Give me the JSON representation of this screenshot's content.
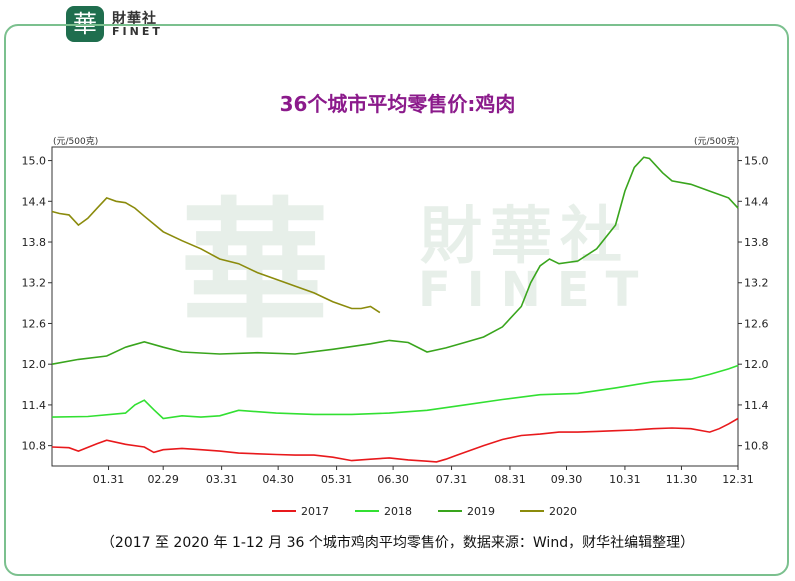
{
  "brand": {
    "logo_char": "華",
    "name_cn": "財華社",
    "name_en": "FINET"
  },
  "watermark": {
    "logo_char": "華",
    "name_cn": "財華社",
    "name_en": "FINET"
  },
  "caption": "（2017 至 2020 年 1-12 月 36 个城市鸡肉平均零售价，数据来源：Wind，财华社编辑整理）",
  "colors": {
    "frame": "#7bc08e",
    "title": "#8b1a8b",
    "logo": "#1f6e4e"
  },
  "chart_data": {
    "type": "line",
    "title": "36个城市平均零售价:鸡肉",
    "ylabel_left": "(元/500克)",
    "ylabel_right": "(元/500克)",
    "ylim": [
      10.5,
      15.2
    ],
    "yticks": [
      10.8,
      11.4,
      12.0,
      12.6,
      13.2,
      13.8,
      14.4,
      15.0
    ],
    "ytick_labels": [
      "10.8",
      "11.4",
      "12.0",
      "12.6",
      "13.2",
      "13.8",
      "14.4",
      "15.0"
    ],
    "xlim": [
      1,
      365
    ],
    "xticks": [
      31,
      60,
      91,
      121,
      152,
      182,
      213,
      244,
      274,
      305,
      335,
      365
    ],
    "xtick_labels": [
      "01.31",
      "02.29",
      "03.31",
      "04.30",
      "05.31",
      "06.30",
      "07.31",
      "08.31",
      "09.30",
      "10.31",
      "11.30",
      "12.31"
    ],
    "legend_position": "bottom",
    "series": [
      {
        "name": "2017",
        "color": "#e8191c",
        "x": [
          1,
          10,
          15,
          25,
          30,
          40,
          50,
          55,
          60,
          70,
          80,
          90,
          100,
          110,
          120,
          130,
          140,
          150,
          160,
          170,
          180,
          190,
          200,
          205,
          210,
          215,
          220,
          230,
          240,
          250,
          260,
          270,
          280,
          290,
          300,
          310,
          320,
          330,
          340,
          350,
          355,
          360,
          365
        ],
        "y": [
          10.78,
          10.77,
          10.72,
          10.83,
          10.88,
          10.82,
          10.78,
          10.7,
          10.74,
          10.76,
          10.74,
          10.72,
          10.69,
          10.68,
          10.67,
          10.66,
          10.66,
          10.63,
          10.58,
          10.6,
          10.62,
          10.59,
          10.57,
          10.56,
          10.6,
          10.65,
          10.7,
          10.8,
          10.89,
          10.95,
          10.97,
          11.0,
          11.0,
          11.01,
          11.02,
          11.03,
          11.05,
          11.06,
          11.05,
          11.0,
          11.05,
          11.12,
          11.2
        ]
      },
      {
        "name": "2018",
        "color": "#32e032",
        "x": [
          1,
          20,
          40,
          45,
          50,
          55,
          60,
          70,
          80,
          90,
          100,
          110,
          120,
          140,
          160,
          180,
          200,
          220,
          240,
          260,
          280,
          300,
          320,
          340,
          350,
          360,
          365
        ],
        "y": [
          11.22,
          11.23,
          11.28,
          11.4,
          11.47,
          11.33,
          11.2,
          11.24,
          11.22,
          11.24,
          11.32,
          11.3,
          11.28,
          11.26,
          11.26,
          11.28,
          11.32,
          11.4,
          11.48,
          11.55,
          11.57,
          11.65,
          11.74,
          11.78,
          11.85,
          11.93,
          11.98
        ]
      },
      {
        "name": "2019",
        "color": "#39a51d",
        "x": [
          1,
          15,
          30,
          40,
          50,
          60,
          70,
          90,
          110,
          130,
          150,
          170,
          180,
          190,
          200,
          210,
          220,
          230,
          240,
          250,
          255,
          260,
          265,
          270,
          280,
          290,
          300,
          305,
          310,
          315,
          318,
          325,
          330,
          340,
          350,
          360,
          365
        ],
        "y": [
          12.0,
          12.07,
          12.12,
          12.25,
          12.33,
          12.25,
          12.18,
          12.15,
          12.17,
          12.15,
          12.22,
          12.3,
          12.35,
          12.32,
          12.18,
          12.24,
          12.32,
          12.4,
          12.55,
          12.85,
          13.2,
          13.45,
          13.55,
          13.48,
          13.52,
          13.7,
          14.05,
          14.55,
          14.9,
          15.05,
          15.03,
          14.82,
          14.7,
          14.65,
          14.55,
          14.45,
          14.3
        ]
      },
      {
        "name": "2020",
        "color": "#8b8b0c",
        "x": [
          1,
          5,
          10,
          15,
          20,
          25,
          30,
          35,
          40,
          45,
          50,
          60,
          70,
          80,
          90,
          100,
          110,
          120,
          130,
          140,
          150,
          160,
          165,
          170,
          175
        ],
        "y": [
          14.25,
          14.22,
          14.2,
          14.05,
          14.15,
          14.3,
          14.45,
          14.4,
          14.38,
          14.3,
          14.18,
          13.95,
          13.82,
          13.7,
          13.55,
          13.48,
          13.35,
          13.25,
          13.15,
          13.05,
          12.92,
          12.82,
          12.82,
          12.85,
          12.76
        ]
      }
    ]
  }
}
